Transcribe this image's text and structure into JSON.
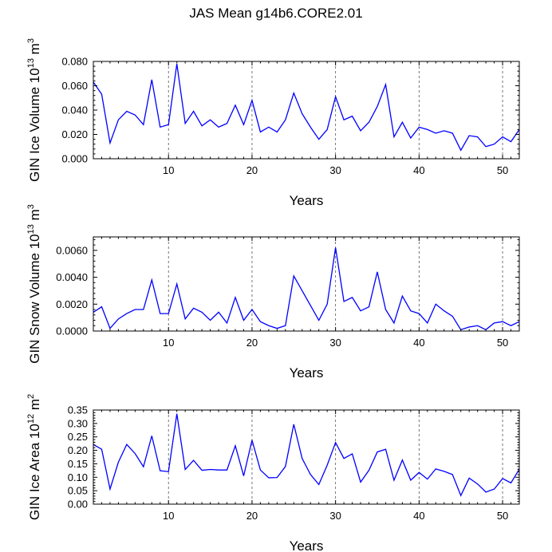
{
  "chart_data": [
    {
      "type": "line",
      "title": "JAS Mean g14b6.CORE2.01",
      "xlabel": "Years",
      "ylabel": "GIN Ice Volume",
      "ylabel_power": "13",
      "ylabel_unit": "m",
      "ylabel_unit_power": "3",
      "xlim": [
        1,
        52
      ],
      "ylim": [
        0,
        0.08
      ],
      "xticks": [
        10,
        20,
        30,
        40,
        50
      ],
      "xtick_labels": [
        "10",
        "20",
        "30",
        "40",
        "50"
      ],
      "yticks": [
        0,
        0.02,
        0.04,
        0.06,
        0.08
      ],
      "ytick_labels": [
        "0.000",
        "0.020",
        "0.040",
        "0.060",
        "0.080"
      ],
      "grid_x": [
        10,
        20,
        30,
        40,
        50
      ],
      "x": [
        1,
        2,
        3,
        4,
        5,
        6,
        7,
        8,
        9,
        10,
        11,
        12,
        13,
        14,
        15,
        16,
        17,
        18,
        19,
        20,
        21,
        22,
        23,
        24,
        25,
        26,
        27,
        28,
        29,
        30,
        31,
        32,
        33,
        34,
        35,
        36,
        37,
        38,
        39,
        40,
        41,
        42,
        43,
        44,
        45,
        46,
        47,
        48,
        49,
        50,
        51,
        52
      ],
      "series": [
        {
          "name": "GIN Ice Volume",
          "color": "#0000ff",
          "values": [
            0.063,
            0.053,
            0.013,
            0.032,
            0.039,
            0.036,
            0.028,
            0.065,
            0.026,
            0.028,
            0.078,
            0.029,
            0.039,
            0.027,
            0.032,
            0.026,
            0.029,
            0.044,
            0.028,
            0.048,
            0.022,
            0.026,
            0.022,
            0.032,
            0.054,
            0.037,
            0.026,
            0.016,
            0.024,
            0.051,
            0.032,
            0.035,
            0.023,
            0.03,
            0.043,
            0.061,
            0.018,
            0.03,
            0.017,
            0.026,
            0.024,
            0.021,
            0.023,
            0.021,
            0.007,
            0.019,
            0.018,
            0.01,
            0.012,
            0.018,
            0.014,
            0.024
          ]
        }
      ]
    },
    {
      "type": "line",
      "xlabel": "Years",
      "ylabel": "GIN Snow Volume",
      "ylabel_power": "13",
      "ylabel_unit": "m",
      "ylabel_unit_power": "3",
      "xlim": [
        1,
        52
      ],
      "ylim": [
        0,
        0.007
      ],
      "xticks": [
        10,
        20,
        30,
        40,
        50
      ],
      "xtick_labels": [
        "10",
        "20",
        "30",
        "40",
        "50"
      ],
      "yticks": [
        0,
        0.002,
        0.004,
        0.006
      ],
      "ytick_labels": [
        "0.0000",
        "0.0020",
        "0.0040",
        "0.0060"
      ],
      "grid_x": [
        10,
        20,
        30,
        40,
        50
      ],
      "x": [
        1,
        2,
        3,
        4,
        5,
        6,
        7,
        8,
        9,
        10,
        11,
        12,
        13,
        14,
        15,
        16,
        17,
        18,
        19,
        20,
        21,
        22,
        23,
        24,
        25,
        26,
        27,
        28,
        29,
        30,
        31,
        32,
        33,
        34,
        35,
        36,
        37,
        38,
        39,
        40,
        41,
        42,
        43,
        44,
        45,
        46,
        47,
        48,
        49,
        50,
        51,
        52
      ],
      "series": [
        {
          "name": "GIN Snow Volume",
          "color": "#0000ff",
          "values": [
            0.0014,
            0.0018,
            0.0002,
            0.0009,
            0.0013,
            0.0016,
            0.0016,
            0.0038,
            0.0013,
            0.0013,
            0.0035,
            0.0009,
            0.0017,
            0.0014,
            0.0008,
            0.0014,
            0.0006,
            0.0025,
            0.0008,
            0.0016,
            0.0007,
            0.0004,
            0.0002,
            0.0004,
            0.0041,
            0.003,
            0.0019,
            0.0008,
            0.002,
            0.0062,
            0.0022,
            0.0025,
            0.0015,
            0.0018,
            0.0044,
            0.0016,
            0.0006,
            0.0026,
            0.0015,
            0.0013,
            0.0006,
            0.002,
            0.0015,
            0.0011,
            0.0001,
            0.0003,
            0.0004,
            0.0001,
            0.0006,
            0.0007,
            0.0004,
            0.0007
          ]
        }
      ]
    },
    {
      "type": "line",
      "xlabel": "Years",
      "ylabel": "GIN Ice Area",
      "ylabel_power": "12",
      "ylabel_unit": "m",
      "ylabel_unit_power": "2",
      "xlim": [
        1,
        52
      ],
      "ylim": [
        0,
        0.35
      ],
      "xticks": [
        10,
        20,
        30,
        40,
        50
      ],
      "xtick_labels": [
        "10",
        "20",
        "30",
        "40",
        "50"
      ],
      "yticks": [
        0,
        0.05,
        0.1,
        0.15,
        0.2,
        0.25,
        0.3,
        0.35
      ],
      "ytick_labels": [
        "0.00",
        "0.05",
        "0.10",
        "0.15",
        "0.20",
        "0.25",
        "0.30",
        "0.35"
      ],
      "grid_x": [
        10,
        20,
        30,
        40,
        50
      ],
      "x": [
        1,
        2,
        3,
        4,
        5,
        6,
        7,
        8,
        9,
        10,
        11,
        12,
        13,
        14,
        15,
        16,
        17,
        18,
        19,
        20,
        21,
        22,
        23,
        24,
        25,
        26,
        27,
        28,
        29,
        30,
        31,
        32,
        33,
        34,
        35,
        36,
        37,
        38,
        39,
        40,
        41,
        42,
        43,
        44,
        45,
        46,
        47,
        48,
        49,
        50,
        51,
        52
      ],
      "series": [
        {
          "name": "GIN Ice Area",
          "color": "#0000ff",
          "values": [
            0.222,
            0.204,
            0.056,
            0.156,
            0.222,
            0.188,
            0.139,
            0.254,
            0.124,
            0.121,
            0.336,
            0.129,
            0.163,
            0.126,
            0.129,
            0.127,
            0.127,
            0.217,
            0.105,
            0.238,
            0.127,
            0.098,
            0.099,
            0.14,
            0.297,
            0.17,
            0.11,
            0.073,
            0.145,
            0.229,
            0.17,
            0.187,
            0.082,
            0.126,
            0.194,
            0.204,
            0.089,
            0.164,
            0.089,
            0.118,
            0.093,
            0.131,
            0.122,
            0.11,
            0.032,
            0.097,
            0.075,
            0.045,
            0.056,
            0.095,
            0.079,
            0.13
          ]
        }
      ]
    }
  ]
}
